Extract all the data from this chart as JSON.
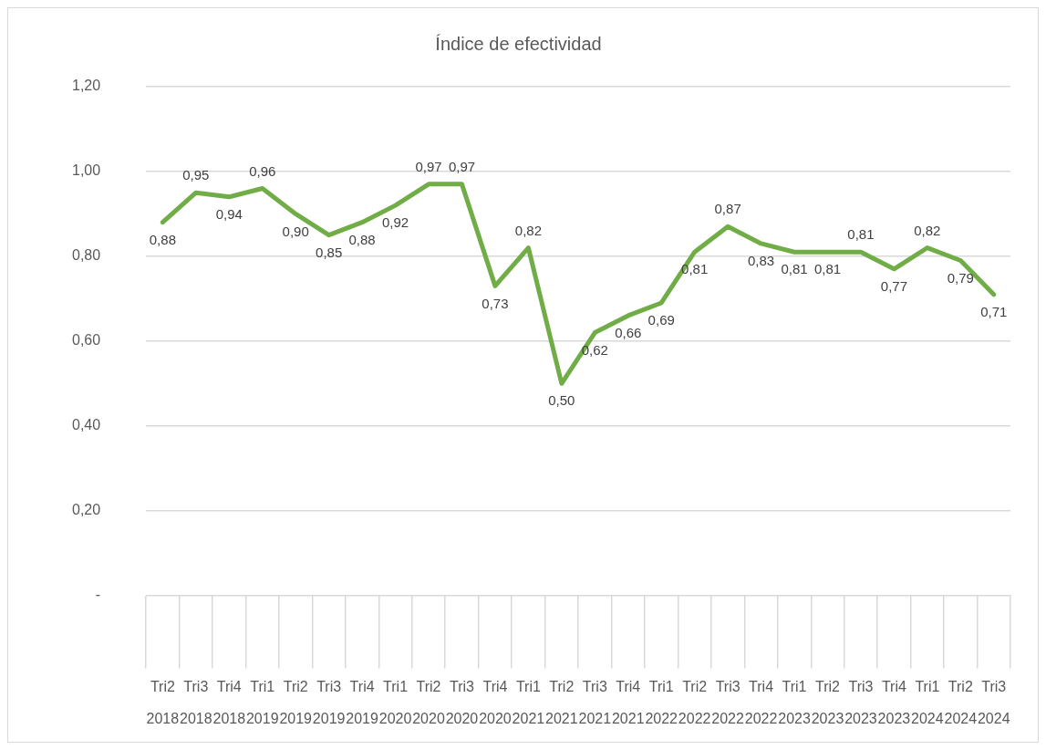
{
  "chart_data": {
    "type": "line",
    "title": "Índice de efectividad",
    "categories": [
      "Tri2 2018",
      "Tri3 2018",
      "Tri4 2018",
      "Tri1 2019",
      "Tri2 2019",
      "Tri3 2019",
      "Tri4 2019",
      "Tri1 2020",
      "Tri2 2020",
      "Tri3 2020",
      "Tri4 2020",
      "Tri1 2021",
      "Tri2 2021",
      "Tri3 2021",
      "Tri4 2021",
      "Tri1 2022",
      "Tri2 2022",
      "Tri3 2022",
      "Tri4 2022",
      "Tri1 2023",
      "Tri2 2023",
      "Tri3 2023",
      "Tri4 2023",
      "Tri1 2024",
      "Tri2 2024",
      "Tri3 2024"
    ],
    "series": [
      {
        "color": "#70ad47",
        "values": [
          0.88,
          0.95,
          0.94,
          0.96,
          0.9,
          0.85,
          0.88,
          0.92,
          0.97,
          0.97,
          0.73,
          0.82,
          0.5,
          0.62,
          0.66,
          0.69,
          0.81,
          0.87,
          0.83,
          0.81,
          0.81,
          0.81,
          0.77,
          0.82,
          0.79,
          0.71
        ],
        "value_labels": [
          "0,88",
          "0,95",
          "0,94",
          "0,96",
          "0,90",
          "0,85",
          "0,88",
          "0,92",
          "0,97",
          "0,97",
          "0,73",
          "0,82",
          "0,50",
          "0,62",
          "0,66",
          "0,69",
          "0,81",
          "0,87",
          "0,83",
          "0,81",
          "0,81",
          "0,81",
          "0,77",
          "0,82",
          "0,79",
          "0,71"
        ]
      }
    ],
    "ylim": [
      0,
      1.2
    ],
    "yticks": [
      {
        "value": 0,
        "label": "-"
      },
      {
        "value": 0.2,
        "label": "0,20"
      },
      {
        "value": 0.4,
        "label": "0,40"
      },
      {
        "value": 0.6,
        "label": "0,60"
      },
      {
        "value": 0.8,
        "label": "0,80"
      },
      {
        "value": 1.0,
        "label": "1,00"
      },
      {
        "value": 1.2,
        "label": "1,20"
      }
    ],
    "grid": "y",
    "legend": false,
    "marker": "none",
    "line_style": "solid"
  }
}
